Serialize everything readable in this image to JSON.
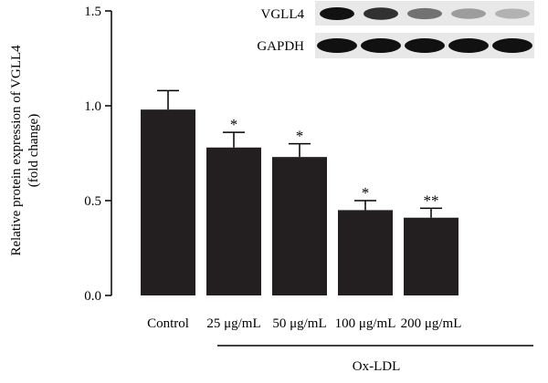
{
  "chart_data": {
    "type": "bar",
    "categories": [
      "Control",
      "25 μg/mL",
      "50 μg/mL",
      "100 μg/mL",
      "200 μg/mL"
    ],
    "values": [
      0.98,
      0.78,
      0.73,
      0.45,
      0.41
    ],
    "errors": [
      0.1,
      0.08,
      0.07,
      0.05,
      0.05
    ],
    "significance": [
      "",
      "*",
      "*",
      "*",
      "**"
    ],
    "ylabel_line1": "Relative protein expression of VGLL4",
    "ylabel_line2": "(fold change)",
    "ylim": [
      0,
      1.5
    ],
    "yticks": [
      "0.0",
      "0.5",
      "1.0",
      "1.5"
    ],
    "group_label": "Ox-LDL",
    "bar_color": "#231f20",
    "blot": {
      "labels": [
        "VGLL4",
        "GAPDH"
      ],
      "vgll4_intensity": [
        1.0,
        0.85,
        0.55,
        0.35,
        0.25
      ],
      "gapdh_intensity": [
        1.0,
        1.0,
        1.0,
        1.0,
        1.0
      ]
    }
  }
}
